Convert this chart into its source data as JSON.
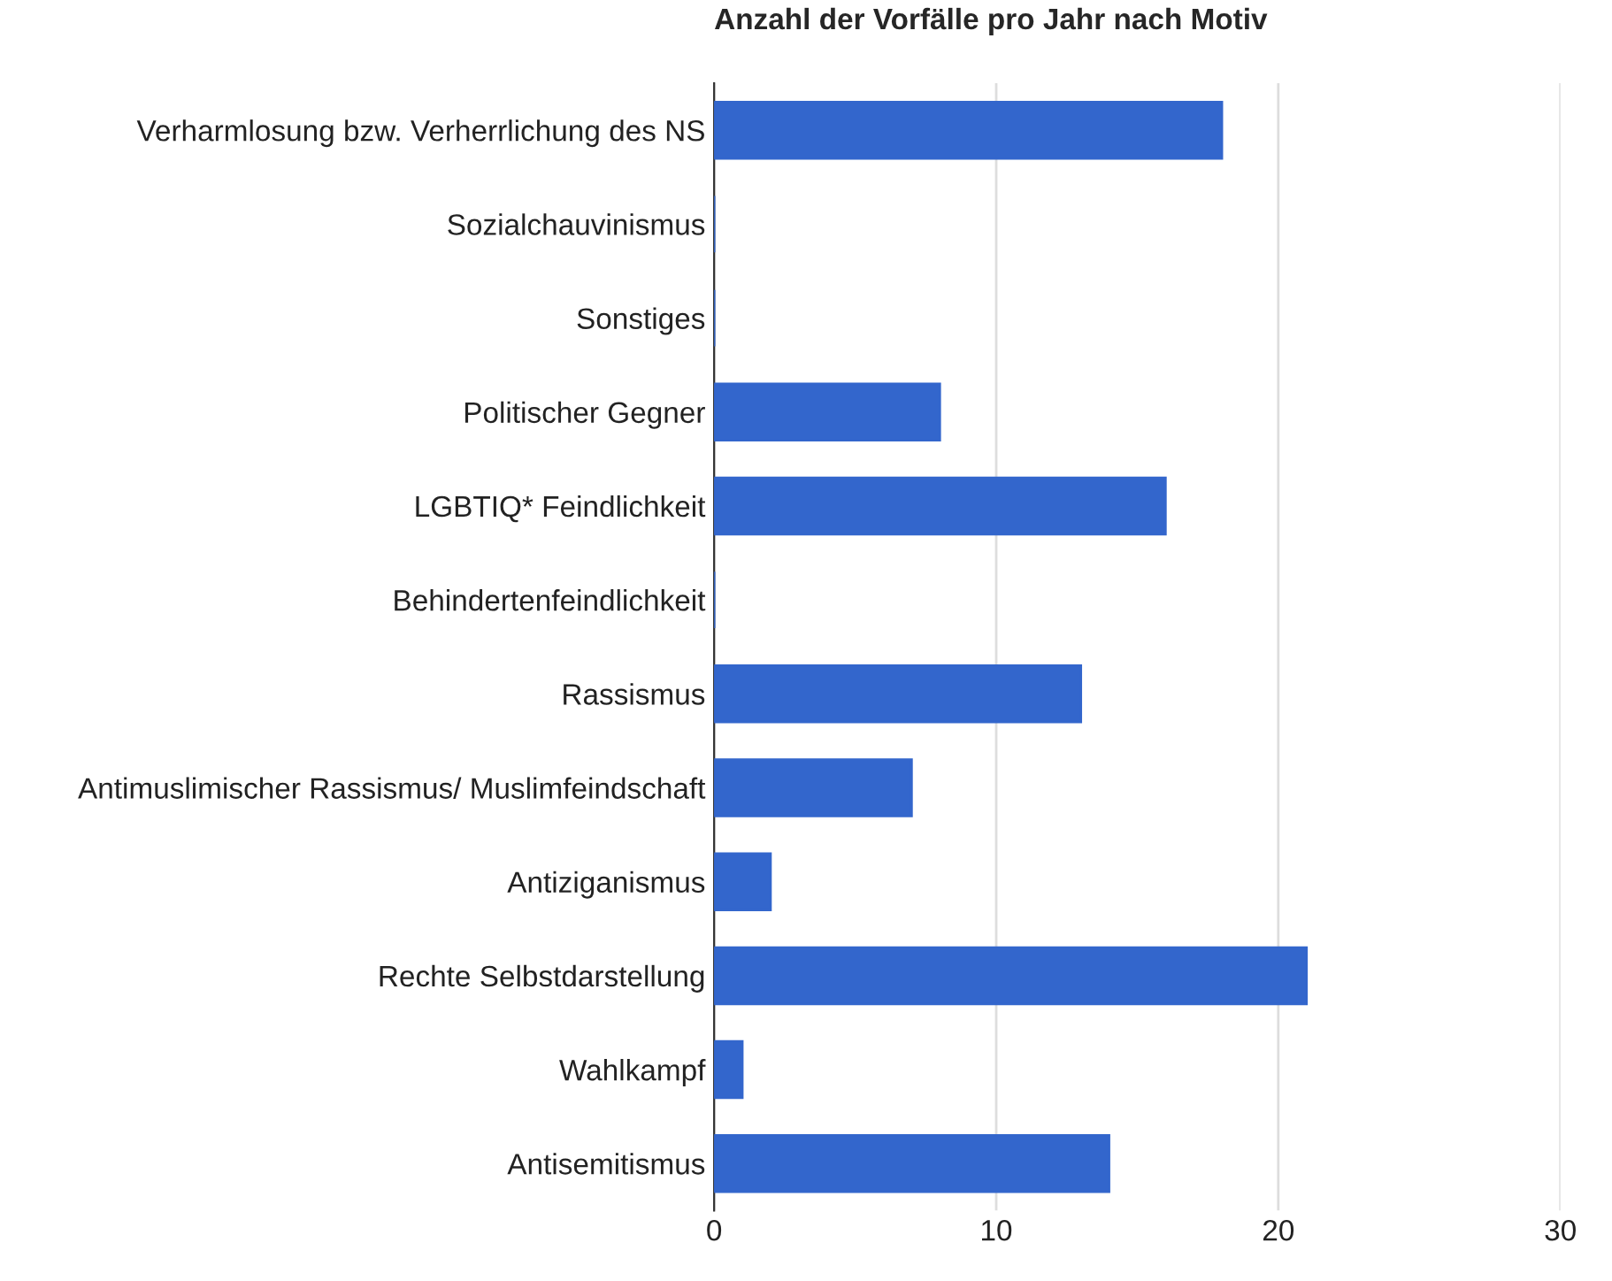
{
  "chart_data": {
    "type": "bar",
    "orientation": "horizontal",
    "title": "Anzahl der Vorfälle pro Jahr nach Motiv",
    "categories": [
      "Verharmlosung bzw. Verherrlichung des NS",
      "Sozialchauvinismus",
      "Sonstiges",
      "Politischer Gegner",
      "LGBTIQ* Feindlichkeit",
      "Behindertenfeindlichkeit",
      "Rassismus",
      "Antimuslimischer Rassismus/ Muslimfeindschaft",
      "Antiziganismus",
      "Rechte Selbstdarstellung",
      "Wahlkampf",
      "Antisemitismus"
    ],
    "values": [
      18,
      0,
      0,
      8,
      16,
      0,
      13,
      7,
      2,
      21,
      1,
      14
    ],
    "color": "#3366cc",
    "xlim": [
      0,
      30
    ],
    "xticks": [
      0,
      10,
      20,
      30
    ],
    "grid": "x",
    "legend": false
  }
}
